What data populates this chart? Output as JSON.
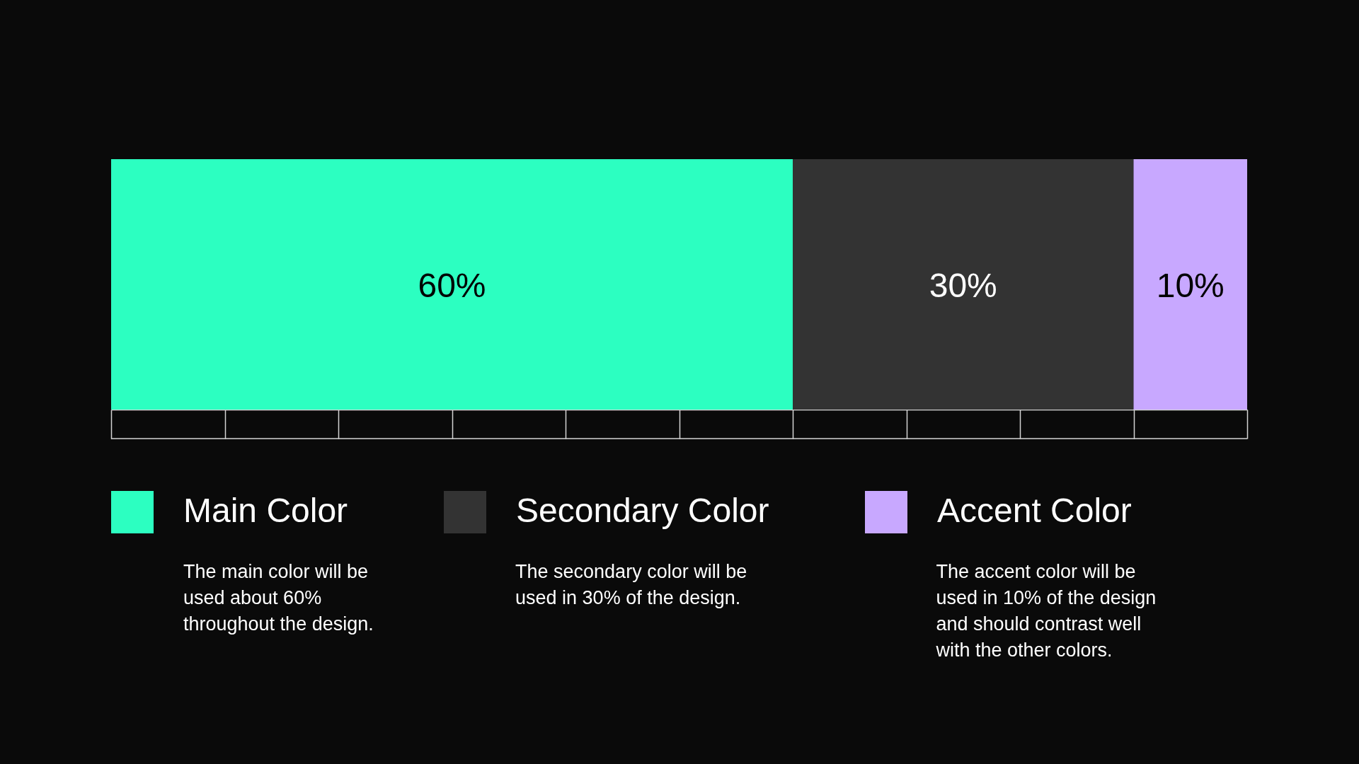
{
  "chart_data": {
    "type": "bar",
    "orientation": "horizontal",
    "stacked": true,
    "categories": [
      null
    ],
    "series": [
      {
        "name": "Main Color",
        "color": "#2cffc1",
        "values": [
          60
        ],
        "value_labels": [
          "60%"
        ]
      },
      {
        "name": "Secondary Color",
        "color": "#333333",
        "values": [
          30
        ],
        "value_labels": [
          "30%"
        ]
      },
      {
        "name": "Accent Color",
        "color": "#c8a8ff",
        "values": [
          10
        ],
        "value_labels": [
          "10%"
        ]
      }
    ],
    "xlim": [
      0,
      100
    ],
    "tick_labels": false,
    "legend": "bottom",
    "annotations": [
      "The main color will be\nused about 60%\nthroughout the design.",
      "The secondary color will be\nused in 30% of the design.",
      "The accent color will be\nused in 10% of the design\nand should contrast well\nwith the other colors."
    ]
  }
}
